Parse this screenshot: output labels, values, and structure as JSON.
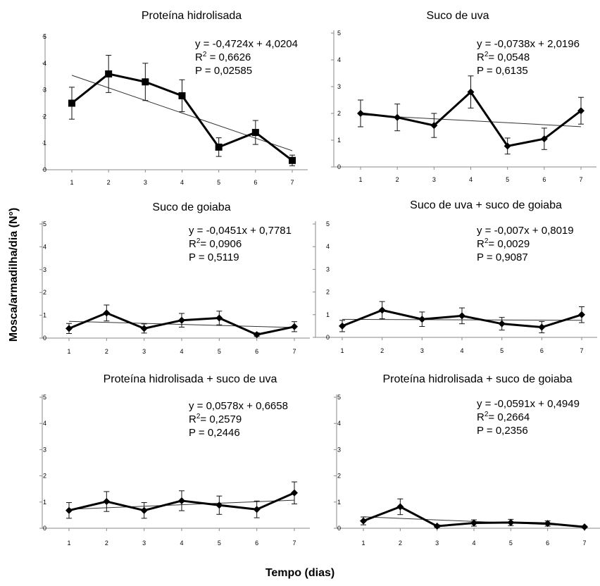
{
  "figure": {
    "ylabel": "Mosca/armadilha/dia (N°)",
    "xlabel": "Tempo (dias)"
  },
  "chart_data": [
    {
      "type": "line",
      "title": "Proteína hidrolisada",
      "x": [
        1,
        2,
        3,
        4,
        5,
        6,
        7
      ],
      "ylim": [
        0,
        5
      ],
      "yticks": [
        0,
        1,
        2,
        3,
        4,
        5
      ],
      "marker": "square",
      "series": [
        {
          "values": [
            2.5,
            3.6,
            3.3,
            2.78,
            0.85,
            1.4,
            0.35
          ],
          "error": [
            0.6,
            0.7,
            0.7,
            0.6,
            0.35,
            0.45,
            0.2
          ]
        }
      ],
      "trendline": {
        "slope": -0.4724,
        "intercept": 4.0204
      },
      "annotation": {
        "eq": "y = -0,4724x + 4,0204",
        "r2_value": " = 0,6626",
        "p": "P = 0,02585"
      }
    },
    {
      "type": "line",
      "title": "Suco de uva",
      "x": [
        1,
        2,
        3,
        4,
        5,
        6,
        7
      ],
      "ylim": [
        0,
        5
      ],
      "yticks": [
        0,
        1,
        2,
        3,
        4,
        5
      ],
      "marker": "diamond",
      "series": [
        {
          "values": [
            2.0,
            1.85,
            1.55,
            2.8,
            0.78,
            1.05,
            2.1
          ],
          "error": [
            0.5,
            0.5,
            0.45,
            0.6,
            0.3,
            0.4,
            0.5
          ]
        }
      ],
      "trendline": {
        "slope": -0.0738,
        "intercept": 2.0196
      },
      "annotation": {
        "eq": "y = -0,0738x + 2,0196",
        "r2_value": "= 0,0548",
        "p": "P = 0,6135"
      }
    },
    {
      "type": "line",
      "title": "Suco de goiaba",
      "x": [
        1,
        2,
        3,
        4,
        5,
        6,
        7
      ],
      "ylim": [
        0,
        5
      ],
      "yticks": [
        0,
        1,
        2,
        3,
        4,
        5
      ],
      "marker": "diamond",
      "series": [
        {
          "values": [
            0.42,
            1.1,
            0.42,
            0.78,
            0.88,
            0.15,
            0.5
          ],
          "error": [
            0.22,
            0.35,
            0.2,
            0.3,
            0.3,
            0.08,
            0.22
          ]
        }
      ],
      "trendline": {
        "slope": -0.0451,
        "intercept": 0.7781
      },
      "annotation": {
        "eq": "y = -0,0451x + 0,7781",
        "r2_value": "= 0,0906",
        "p": "P = 0,5119"
      }
    },
    {
      "type": "line",
      "title": "Suco de uva + suco de goiaba",
      "x": [
        1,
        2,
        3,
        4,
        5,
        6,
        7
      ],
      "ylim": [
        0,
        5
      ],
      "yticks": [
        0,
        1,
        2,
        3,
        4,
        5
      ],
      "marker": "diamond",
      "series": [
        {
          "values": [
            0.5,
            1.2,
            0.8,
            0.95,
            0.6,
            0.45,
            1.0
          ],
          "error": [
            0.25,
            0.38,
            0.32,
            0.35,
            0.28,
            0.25,
            0.35
          ]
        }
      ],
      "trendline": {
        "slope": -0.007,
        "intercept": 0.8019
      },
      "annotation": {
        "eq": "y = -0,007x + 0,8019",
        "r2_value": "= 0,0029",
        "p": "P = 0,9087"
      }
    },
    {
      "type": "line",
      "title": "Proteína hidrolisada + suco de uva",
      "x": [
        1,
        2,
        3,
        4,
        5,
        6,
        7
      ],
      "ylim": [
        0,
        5
      ],
      "yticks": [
        0,
        1,
        2,
        3,
        4,
        5
      ],
      "marker": "diamond",
      "series": [
        {
          "values": [
            0.68,
            1.02,
            0.68,
            1.05,
            0.88,
            0.72,
            1.35
          ],
          "error": [
            0.3,
            0.38,
            0.3,
            0.38,
            0.35,
            0.32,
            0.42
          ]
        }
      ],
      "trendline": {
        "slope": 0.0578,
        "intercept": 0.6658
      },
      "annotation": {
        "eq": "y = 0,0578x + 0,6658",
        "r2_value": "= 0,2579",
        "p": "P = 0,2446"
      }
    },
    {
      "type": "line",
      "title": "Proteína hidrolisada + suco de goiaba",
      "x": [
        1,
        2,
        3,
        4,
        5,
        6,
        7
      ],
      "ylim": [
        0,
        5
      ],
      "yticks": [
        0,
        1,
        2,
        3,
        4,
        5
      ],
      "marker": "diamond",
      "series": [
        {
          "values": [
            0.28,
            0.82,
            0.08,
            0.2,
            0.22,
            0.18,
            0.05
          ],
          "error": [
            0.15,
            0.3,
            0.05,
            0.12,
            0.12,
            0.1,
            0.03
          ]
        }
      ],
      "trendline": {
        "slope": -0.0591,
        "intercept": 0.4949
      },
      "annotation": {
        "eq": "y = -0,0591x + 0,4949",
        "r2_value": "= 0,2664",
        "p": "P = 0,2356"
      }
    }
  ]
}
